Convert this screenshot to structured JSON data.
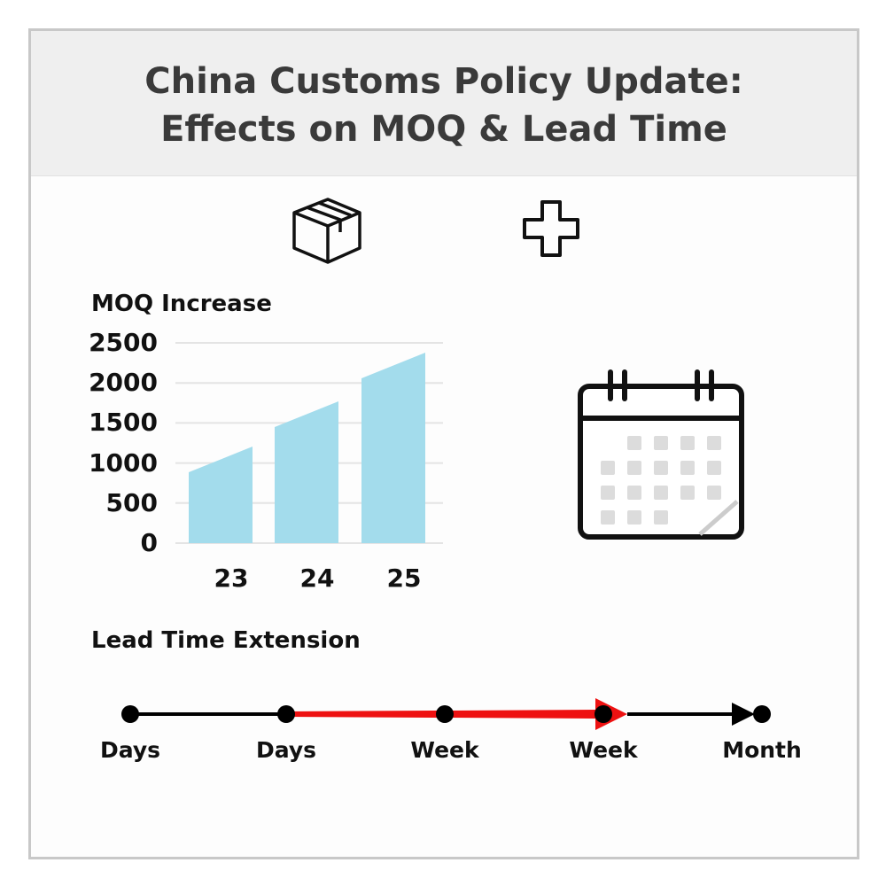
{
  "header": {
    "title_line1": "China Customs Policy Update:",
    "title_line2": "Effects on MOQ & Lead Time"
  },
  "icons": [
    "box-icon",
    "plus-icon",
    "calendar-icon"
  ],
  "colors": {
    "bar": "#a3dcec",
    "timeline_highlight": "#ee1111",
    "timeline_base": "#000000",
    "header_bg": "#efefef"
  },
  "chart_data": {
    "type": "bar",
    "title": "MOQ Increase",
    "categories": [
      "23",
      "24",
      "25"
    ],
    "bar_start_values": [
      885,
      1449,
      2058
    ],
    "bar_end_values": [
      1206,
      1770,
      2378
    ],
    "ylim": [
      0,
      2500
    ],
    "yticks": [
      "0",
      "500",
      "1000",
      "1500",
      "2000",
      "2500"
    ],
    "grid": true
  },
  "timeline": {
    "title": "Lead Time Extension",
    "labels": [
      "Days",
      "Days",
      "Week",
      "Week",
      "Month"
    ]
  }
}
